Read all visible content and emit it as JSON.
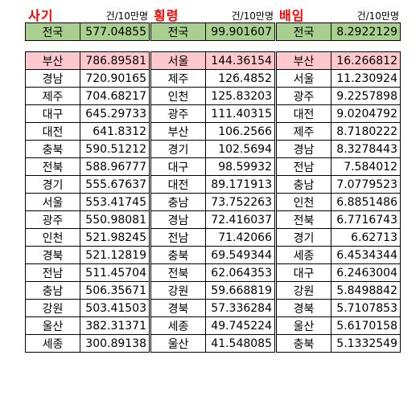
{
  "unit_label": "건/10만명",
  "colors": {
    "title": "#ff0000",
    "national_bg": "#a9d08e",
    "top_bg": "#ffc7ce"
  },
  "panels": [
    {
      "title": "사기",
      "national": {
        "region": "전국",
        "value": "577.04855"
      },
      "rows": [
        {
          "region": "부산",
          "value": "786.89581"
        },
        {
          "region": "경남",
          "value": "720.90165"
        },
        {
          "region": "제주",
          "value": "704.68217"
        },
        {
          "region": "대구",
          "value": "645.29733"
        },
        {
          "region": "대전",
          "value": "641.8312"
        },
        {
          "region": "충북",
          "value": "590.51212"
        },
        {
          "region": "전북",
          "value": "588.96777"
        },
        {
          "region": "경기",
          "value": "555.67637"
        },
        {
          "region": "서울",
          "value": "553.41745"
        },
        {
          "region": "광주",
          "value": "550.98081"
        },
        {
          "region": "인천",
          "value": "521.98245"
        },
        {
          "region": "경북",
          "value": "521.12819"
        },
        {
          "region": "전남",
          "value": "511.45704"
        },
        {
          "region": "충남",
          "value": "506.35671"
        },
        {
          "region": "강원",
          "value": "503.41503"
        },
        {
          "region": "울산",
          "value": "382.31371"
        },
        {
          "region": "세종",
          "value": "300.89138"
        }
      ]
    },
    {
      "title": "횡령",
      "national": {
        "region": "전국",
        "value": "99.901607"
      },
      "rows": [
        {
          "region": "서울",
          "value": "144.36154"
        },
        {
          "region": "제주",
          "value": "126.4852"
        },
        {
          "region": "인천",
          "value": "125.83203"
        },
        {
          "region": "광주",
          "value": "111.40315"
        },
        {
          "region": "부산",
          "value": "106.2566"
        },
        {
          "region": "경기",
          "value": "102.5694"
        },
        {
          "region": "대구",
          "value": "98.59932"
        },
        {
          "region": "대전",
          "value": "89.171913"
        },
        {
          "region": "충남",
          "value": "73.752263"
        },
        {
          "region": "경남",
          "value": "72.416037"
        },
        {
          "region": "전남",
          "value": "71.42066"
        },
        {
          "region": "충북",
          "value": "69.549344"
        },
        {
          "region": "전북",
          "value": "62.064353"
        },
        {
          "region": "강원",
          "value": "59.668819"
        },
        {
          "region": "경북",
          "value": "57.336284"
        },
        {
          "region": "세종",
          "value": "49.745224"
        },
        {
          "region": "울산",
          "value": "41.548085"
        }
      ]
    },
    {
      "title": "배임",
      "national": {
        "region": "전국",
        "value": "8.2922129"
      },
      "rows": [
        {
          "region": "부산",
          "value": "16.266812"
        },
        {
          "region": "서울",
          "value": "11.230924"
        },
        {
          "region": "광주",
          "value": "9.2257898"
        },
        {
          "region": "대전",
          "value": "9.0204792"
        },
        {
          "region": "제주",
          "value": "8.7180222"
        },
        {
          "region": "경남",
          "value": "8.3278443"
        },
        {
          "region": "전남",
          "value": "7.584012"
        },
        {
          "region": "충남",
          "value": "7.0779523"
        },
        {
          "region": "인천",
          "value": "6.8851486"
        },
        {
          "region": "전북",
          "value": "6.7716743"
        },
        {
          "region": "경기",
          "value": "6.62713"
        },
        {
          "region": "세종",
          "value": "6.4534344"
        },
        {
          "region": "대구",
          "value": "6.2463004"
        },
        {
          "region": "강원",
          "value": "5.8498842"
        },
        {
          "region": "경북",
          "value": "5.7107853"
        },
        {
          "region": "울산",
          "value": "5.6170158"
        },
        {
          "region": "충북",
          "value": "5.1332549"
        }
      ]
    }
  ]
}
